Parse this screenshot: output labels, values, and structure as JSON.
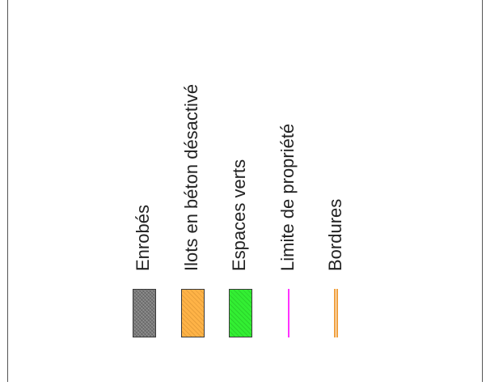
{
  "legend": {
    "items": [
      {
        "label": "Enrobés",
        "kind": "fill",
        "color": "#7d7d7d"
      },
      {
        "label": "Ilots en béton désactivé",
        "kind": "fill",
        "color": "#ffb347"
      },
      {
        "label": "Espaces verts",
        "kind": "fill",
        "color": "#33ee33"
      },
      {
        "label": "Limite de propriété",
        "kind": "line",
        "color": "#ff33ff"
      },
      {
        "label": "Bordures",
        "kind": "double-line",
        "color": "#f0a040"
      }
    ]
  }
}
